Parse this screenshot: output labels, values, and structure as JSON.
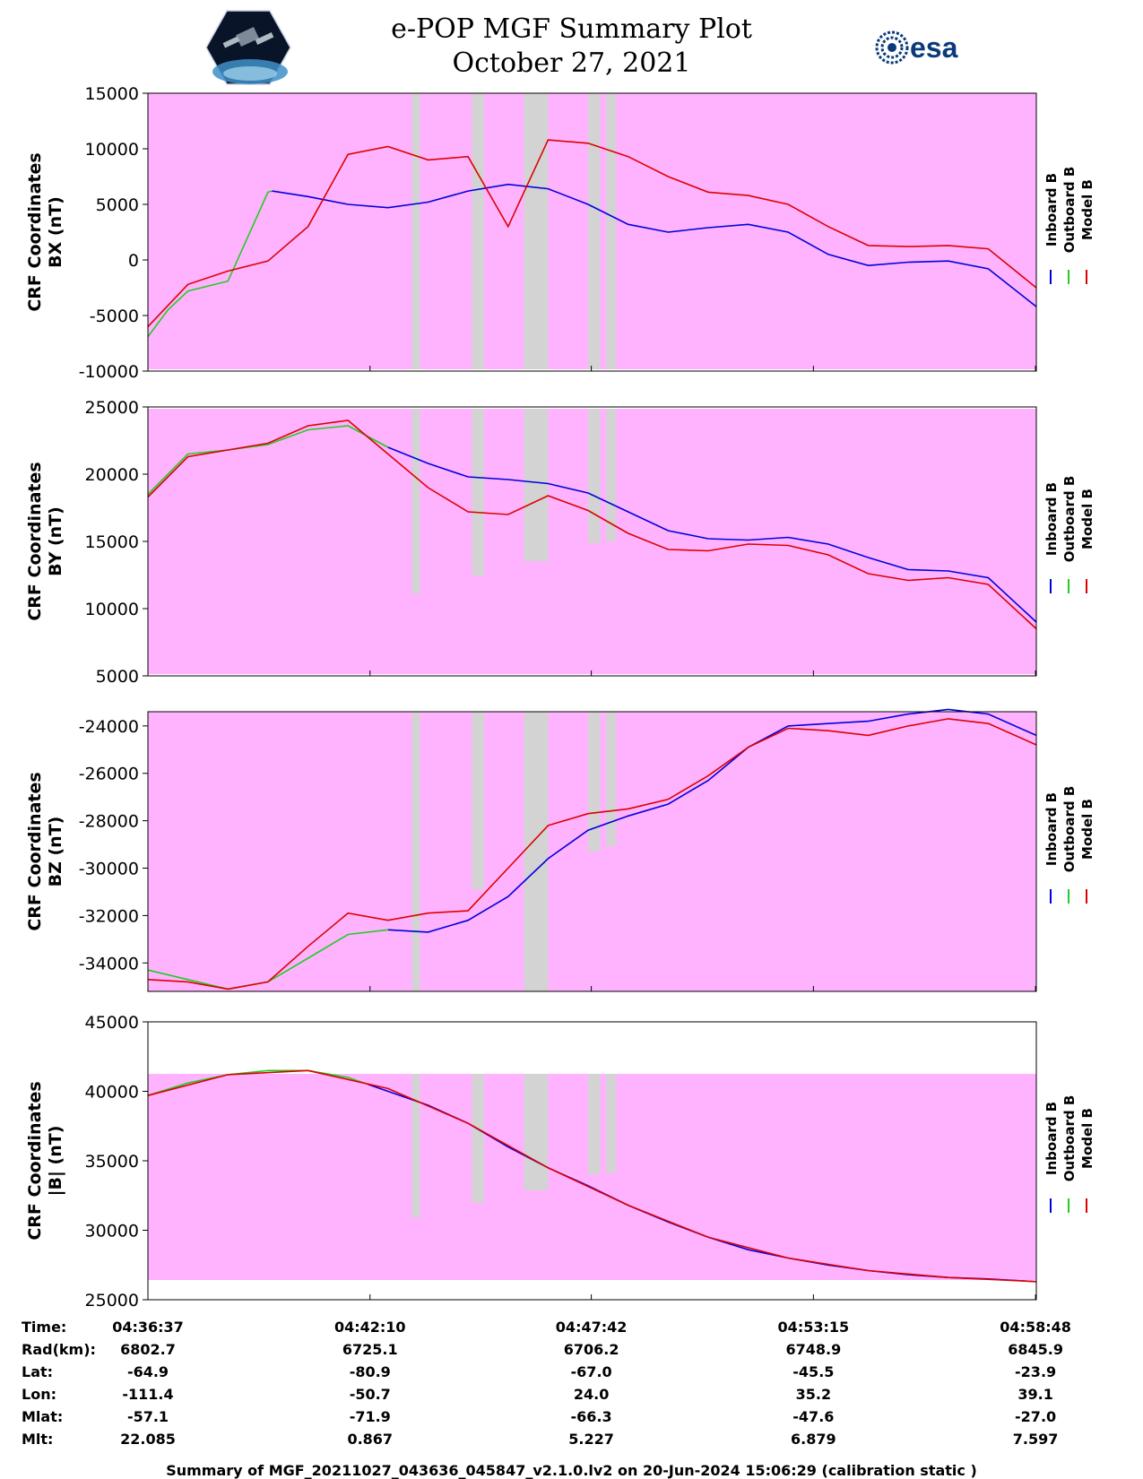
{
  "header": {
    "title": "e-POP MGF Summary Plot",
    "date": "October 27, 2021",
    "logo_left_icon": "cassiope-satellite-logo",
    "logo_right_text": "esa"
  },
  "legend_labels": [
    "Inboard B",
    "Outboard B",
    "Model B"
  ],
  "colors": {
    "inboard": "#0000dd",
    "outboard": "#22cc22",
    "model": "#dd0000",
    "background": "#ffb3ff",
    "gap": "#d3d3d3"
  },
  "chart_data": [
    {
      "type": "line",
      "ylabel": [
        "CRF Coordinates",
        "BX (nT)"
      ],
      "ylim": [
        -10000,
        15000
      ],
      "yticks": [
        "15000",
        "10000",
        "5000",
        "0",
        "-5000",
        "-10000"
      ],
      "series": [
        {
          "name": "Inboard B",
          "x": [
            3.1,
            4,
            5,
            6,
            7,
            8,
            9,
            10,
            11,
            12,
            13,
            14,
            15,
            16,
            17,
            18,
            19,
            20,
            21,
            22.2
          ],
          "y": [
            6200,
            5700,
            5000,
            4700,
            5200,
            6200,
            6800,
            6400,
            5000,
            3200,
            2500,
            2900,
            3200,
            2500,
            500,
            -500,
            -200,
            -100,
            -800,
            -4200
          ]
        },
        {
          "name": "Outboard B",
          "x": [
            0,
            0.5,
            1,
            2,
            3,
            3.1
          ],
          "y": [
            -6900,
            -4500,
            -2800,
            -1900,
            6100,
            6200
          ]
        },
        {
          "name": "Model B",
          "x": [
            0,
            1,
            2,
            3,
            4,
            5,
            6,
            7,
            8,
            9,
            10,
            11,
            12,
            13,
            14,
            15,
            16,
            17,
            18,
            19,
            20,
            21,
            22.2
          ],
          "y": [
            -6000,
            -2200,
            -1000,
            -100,
            3000,
            9500,
            10200,
            9000,
            9300,
            3000,
            10800,
            10500,
            9300,
            7500,
            6100,
            5800,
            5000,
            3000,
            1300,
            1200,
            1300,
            1000,
            -2500
          ]
        }
      ]
    },
    {
      "type": "line",
      "ylabel": [
        "CRF Coordinates",
        "BY (nT)"
      ],
      "ylim": [
        5000,
        25000
      ],
      "yticks": [
        "25000",
        "20000",
        "15000",
        "10000",
        "5000"
      ],
      "series": [
        {
          "name": "Inboard B",
          "x": [
            6,
            7,
            8,
            9,
            10,
            11,
            12,
            13,
            14,
            15,
            16,
            17,
            18,
            19,
            20,
            21,
            22.2
          ],
          "y": [
            22000,
            20800,
            19800,
            19600,
            19300,
            18600,
            17200,
            15800,
            15200,
            15100,
            15300,
            14800,
            13800,
            12900,
            12800,
            12300,
            9000
          ]
        },
        {
          "name": "Outboard B",
          "x": [
            0,
            1,
            2,
            3,
            4,
            5,
            6
          ],
          "y": [
            18500,
            21500,
            21800,
            22200,
            23300,
            23600,
            22000
          ]
        },
        {
          "name": "Model B",
          "x": [
            0,
            1,
            2,
            3,
            4,
            5,
            6,
            7,
            8,
            9,
            10,
            11,
            12,
            13,
            14,
            15,
            16,
            17,
            18,
            19,
            20,
            21,
            22.2
          ],
          "y": [
            18300,
            21300,
            21800,
            22300,
            23600,
            24000,
            21500,
            19000,
            17200,
            17000,
            18400,
            17300,
            15600,
            14400,
            14300,
            14800,
            14700,
            14000,
            12600,
            12100,
            12300,
            11800,
            8500
          ]
        }
      ]
    },
    {
      "type": "line",
      "ylabel": [
        "CRF Coordinates",
        "BZ (nT)"
      ],
      "ylim": [
        -35200,
        -23400
      ],
      "yticks": [
        "-24000",
        "-26000",
        "-28000",
        "-30000",
        "-32000",
        "-34000"
      ],
      "series": [
        {
          "name": "Inboard B",
          "x": [
            6,
            7,
            8,
            9,
            10,
            11,
            12,
            13,
            14,
            15,
            16,
            17,
            18,
            19,
            20,
            21,
            22.2
          ],
          "y": [
            -32600,
            -32700,
            -32200,
            -31200,
            -29600,
            -28400,
            -27800,
            -27300,
            -26300,
            -24900,
            -24000,
            -23900,
            -23800,
            -23500,
            -23300,
            -23500,
            -24400
          ]
        },
        {
          "name": "Outboard B",
          "x": [
            0,
            1,
            2,
            3,
            4,
            5,
            6
          ],
          "y": [
            -34300,
            -34700,
            -35100,
            -34800,
            -33800,
            -32800,
            -32600
          ]
        },
        {
          "name": "Model B",
          "x": [
            0,
            1,
            2,
            3,
            4,
            5,
            6,
            7,
            8,
            9,
            10,
            11,
            12,
            13,
            14,
            15,
            16,
            17,
            18,
            19,
            20,
            21,
            22.2
          ],
          "y": [
            -34700,
            -34800,
            -35100,
            -34800,
            -33300,
            -31900,
            -32200,
            -31900,
            -31800,
            -30000,
            -28200,
            -27700,
            -27500,
            -27100,
            -26100,
            -24900,
            -24100,
            -24200,
            -24400,
            -24000,
            -23700,
            -23900,
            -24800
          ]
        }
      ]
    },
    {
      "type": "line",
      "ylabel": [
        "CRF Coordinates",
        "|B| (nT)"
      ],
      "ylim": [
        25000,
        45000
      ],
      "yticks": [
        "45000",
        "40000",
        "35000",
        "30000",
        "25000"
      ],
      "series": [
        {
          "name": "Inboard B",
          "x": [
            5.5,
            7,
            8,
            9,
            10,
            11,
            12,
            13,
            14,
            15,
            16,
            17,
            18,
            19,
            20,
            21,
            22.2
          ],
          "y": [
            40500,
            39000,
            37700,
            36000,
            34500,
            33200,
            31800,
            30600,
            29500,
            28600,
            28000,
            27500,
            27100,
            26800,
            26600,
            26500,
            26300
          ]
        },
        {
          "name": "Outboard B",
          "x": [
            0,
            1,
            2,
            3,
            4,
            5,
            5.5
          ],
          "y": [
            39700,
            40600,
            41200,
            41500,
            41500,
            41000,
            40500
          ]
        },
        {
          "name": "Model B",
          "x": [
            0,
            2,
            4,
            6,
            8,
            10,
            12,
            14,
            16,
            18,
            20,
            22.2
          ],
          "y": [
            39700,
            41200,
            41500,
            40200,
            37700,
            34500,
            31800,
            29500,
            28000,
            27100,
            26600,
            26300
          ]
        }
      ]
    }
  ],
  "x_axis": {
    "xlim": [
      0,
      22.2
    ],
    "tick_positions": [
      0,
      5.55,
      11.08,
      16.63,
      22.18
    ]
  },
  "gaps": [
    [
      6.6,
      6.8
    ],
    [
      8.1,
      8.4
    ],
    [
      9.4,
      10.0
    ],
    [
      11.0,
      11.3
    ],
    [
      11.45,
      11.7
    ]
  ],
  "ephemeris": {
    "labels": [
      "Time:",
      "Rad(km):",
      "Lat:",
      "Lon:",
      "Mlat:",
      "Mlt:"
    ],
    "columns": [
      [
        "04:36:37",
        "6802.7",
        "-64.9",
        "-111.4",
        "-57.1",
        "22.085"
      ],
      [
        "04:42:10",
        "6725.1",
        "-80.9",
        "-50.7",
        "-71.9",
        "0.867"
      ],
      [
        "04:47:42",
        "6706.2",
        "-67.0",
        "24.0",
        "-66.3",
        "5.227"
      ],
      [
        "04:53:15",
        "6748.9",
        "-45.5",
        "35.2",
        "-47.6",
        "6.879"
      ],
      [
        "04:58:48",
        "6845.9",
        "-23.9",
        "39.1",
        "-27.0",
        "7.597"
      ]
    ]
  },
  "footer": "Summary of MGF_20211027_043636_045847_v2.1.0.lv2 on 20-Jun-2024 15:06:29 (calibration static )"
}
